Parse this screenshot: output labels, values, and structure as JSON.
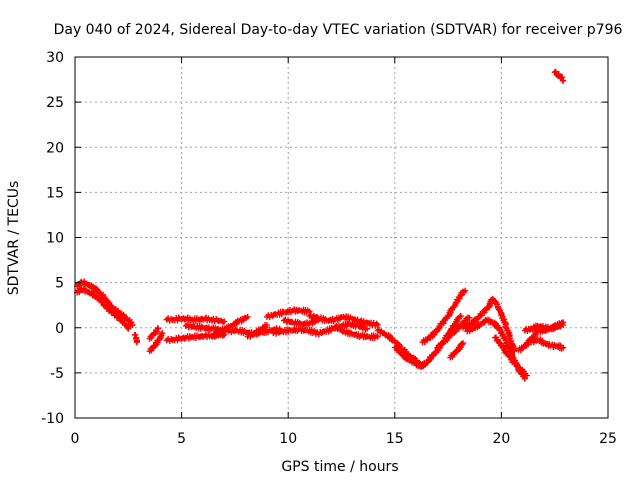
{
  "chart_data": {
    "type": "scatter",
    "title": "Day 040 of 2024, Sidereal Day-to-day VTEC variation (SDTVAR) for receiver p796",
    "xlabel": "GPS time / hours",
    "ylabel": "SDTVAR / TECUs",
    "xlim": [
      0,
      25
    ],
    "ylim": [
      -10,
      30
    ],
    "xticks": [
      0,
      5,
      10,
      15,
      20,
      25
    ],
    "yticks": [
      -10,
      -5,
      0,
      5,
      10,
      15,
      20,
      25,
      30
    ],
    "xtick_labels": [
      "0",
      "5",
      "10",
      "15",
      "20",
      "25"
    ],
    "ytick_labels": [
      "-10",
      "-5",
      "0",
      "5",
      "10",
      "15",
      "20",
      "25",
      "30"
    ],
    "grid": true,
    "marker": "+",
    "color": "#ff0000",
    "series": [
      {
        "name": "SDTVAR",
        "segments": [
          {
            "x": [
              0.1,
              0.3,
              0.5,
              0.7,
              0.9,
              1.1,
              1.3,
              1.5,
              1.7,
              1.9,
              2.1,
              2.3,
              2.5,
              2.7
            ],
            "y": [
              4.6,
              5.1,
              4.9,
              4.6,
              4.4,
              4.0,
              3.6,
              3.0,
              2.4,
              2.0,
              1.6,
              1.2,
              0.8,
              0.3
            ]
          },
          {
            "x": [
              0.1,
              0.3,
              0.5,
              0.7,
              0.9,
              1.1,
              1.3,
              1.5,
              1.7,
              1.9,
              2.1,
              2.3,
              2.5
            ],
            "y": [
              3.9,
              4.3,
              4.1,
              3.8,
              3.6,
              3.3,
              2.8,
              2.3,
              1.8,
              1.4,
              1.0,
              0.5,
              -0.1
            ]
          },
          {
            "x": [
              2.8,
              2.9
            ],
            "y": [
              -0.8,
              -1.6
            ]
          },
          {
            "x": [
              3.5,
              3.7,
              3.9,
              4.1
            ],
            "y": [
              -2.6,
              -2.0,
              -1.4,
              -0.6
            ]
          },
          {
            "x": [
              3.5,
              3.7,
              3.9
            ],
            "y": [
              -1.2,
              -0.6,
              -0.1
            ]
          },
          {
            "x": [
              4.3,
              4.6,
              4.9,
              5.2,
              5.5,
              5.8,
              6.1,
              6.4,
              6.7,
              7.0
            ],
            "y": [
              0.9,
              0.9,
              1.0,
              1.0,
              0.9,
              0.9,
              1.0,
              0.9,
              0.8,
              0.7
            ]
          },
          {
            "x": [
              4.3,
              4.6,
              4.9,
              5.2,
              5.5,
              5.8,
              6.1,
              6.4,
              6.7,
              7.0
            ],
            "y": [
              -1.4,
              -1.3,
              -1.2,
              -1.1,
              -1.0,
              -1.0,
              -0.9,
              -0.9,
              -0.8,
              -0.8
            ]
          },
          {
            "x": [
              5.2,
              5.6,
              6.0,
              6.4,
              6.8,
              7.2
            ],
            "y": [
              0.2,
              0.1,
              0.0,
              -0.1,
              -0.2,
              -0.3
            ]
          },
          {
            "x": [
              6.5,
              6.9,
              7.3,
              7.7,
              8.1
            ],
            "y": [
              -0.9,
              -0.4,
              0.2,
              0.7,
              1.2
            ]
          },
          {
            "x": [
              7.2,
              7.6,
              8.0,
              8.4,
              8.8,
              9.2,
              9.6
            ],
            "y": [
              -0.4,
              -0.3,
              -0.5,
              -0.7,
              -0.5,
              -0.3,
              -0.1
            ]
          },
          {
            "x": [
              8.1,
              8.4,
              8.7,
              9.0
            ],
            "y": [
              -1.0,
              -0.6,
              -0.2,
              0.3
            ]
          },
          {
            "x": [
              9.0,
              9.4,
              9.8,
              10.2,
              10.6,
              11.0
            ],
            "y": [
              1.2,
              1.5,
              1.7,
              1.9,
              1.9,
              1.8
            ]
          },
          {
            "x": [
              9.3,
              9.7,
              10.1,
              10.5,
              10.9,
              11.3
            ],
            "y": [
              -0.6,
              -0.4,
              -0.3,
              -0.2,
              -0.3,
              -0.5
            ]
          },
          {
            "x": [
              9.8,
              10.2,
              10.6,
              11.0,
              11.4
            ],
            "y": [
              0.8,
              0.6,
              0.4,
              0.5,
              0.8
            ]
          },
          {
            "x": [
              11.0,
              11.4,
              11.8,
              12.2,
              12.6,
              13.0,
              13.4,
              13.8,
              14.2
            ],
            "y": [
              1.3,
              1.1,
              0.8,
              0.9,
              1.2,
              1.0,
              0.7,
              0.5,
              0.3
            ]
          },
          {
            "x": [
              11.3,
              11.7,
              12.1,
              12.5,
              12.9,
              13.3,
              13.7
            ],
            "y": [
              -0.7,
              -0.4,
              -0.1,
              0.2,
              0.4,
              0.2,
              -0.1
            ]
          },
          {
            "x": [
              12.2,
              12.6,
              13.0,
              13.4,
              13.8,
              14.2
            ],
            "y": [
              0.1,
              -0.4,
              -0.7,
              -0.9,
              -1.0,
              -1.0
            ]
          },
          {
            "x": [
              14.2,
              14.6,
              15.0,
              15.4,
              15.8,
              16.2
            ],
            "y": [
              -0.3,
              -0.8,
              -1.5,
              -2.5,
              -3.3,
              -4.0
            ]
          },
          {
            "x": [
              15.0,
              15.3,
              15.6,
              15.9,
              16.2,
              16.5,
              16.8
            ],
            "y": [
              -2.2,
              -2.9,
              -3.5,
              -3.9,
              -4.3,
              -3.9,
              -3.1
            ]
          },
          {
            "x": [
              16.3,
              16.6,
              16.9,
              17.2,
              17.5,
              17.8,
              18.1,
              18.3
            ],
            "y": [
              -1.6,
              -1.1,
              -0.5,
              0.4,
              1.3,
              2.4,
              3.6,
              4.1
            ]
          },
          {
            "x": [
              16.6,
              16.9,
              17.2,
              17.5,
              17.8,
              18.1
            ],
            "y": [
              -3.5,
              -2.7,
              -1.8,
              -0.8,
              0.3,
              1.3
            ]
          },
          {
            "x": [
              17.0,
              17.3,
              17.6,
              17.9,
              18.2,
              18.5
            ],
            "y": [
              -2.2,
              -1.5,
              -0.8,
              -0.2,
              0.5,
              1.1
            ]
          },
          {
            "x": [
              17.6,
              17.9,
              18.2
            ],
            "y": [
              -3.3,
              -2.5,
              -1.7
            ]
          },
          {
            "x": [
              18.2,
              18.5,
              18.8,
              19.1,
              19.4,
              19.6,
              19.8,
              20.0,
              20.2,
              20.4,
              20.6
            ],
            "y": [
              0.0,
              0.3,
              0.9,
              1.6,
              2.3,
              3.2,
              2.6,
              1.6,
              0.3,
              -1.2,
              -2.6
            ]
          },
          {
            "x": [
              18.4,
              18.7,
              19.0,
              19.3,
              19.6,
              19.9,
              20.2,
              20.5,
              20.8,
              21.1
            ],
            "y": [
              -0.4,
              0.0,
              0.4,
              0.8,
              0.6,
              0.0,
              -1.4,
              -3.0,
              -4.6,
              -5.6
            ]
          },
          {
            "x": [
              19.7,
              20.0,
              20.3,
              20.6,
              20.9,
              21.2
            ],
            "y": [
              -1.1,
              -2.0,
              -3.0,
              -3.9,
              -4.6,
              -5.3
            ]
          },
          {
            "x": [
              20.8,
              21.1,
              21.4,
              21.7,
              22.0,
              22.3,
              22.6,
              22.9
            ],
            "y": [
              -2.5,
              -2.0,
              -1.2,
              -0.4,
              -0.3,
              0.0,
              0.2,
              0.6
            ]
          },
          {
            "x": [
              21.1,
              21.4,
              21.7,
              22.0,
              22.3,
              22.6,
              22.9
            ],
            "y": [
              -0.3,
              -0.1,
              0.2,
              0.0,
              -0.1,
              0.1,
              0.3
            ]
          },
          {
            "x": [
              21.4,
              21.7,
              22.0,
              22.3,
              22.6,
              22.9
            ],
            "y": [
              -1.6,
              -1.3,
              -1.7,
              -2.0,
              -2.0,
              -2.2
            ]
          },
          {
            "x": [
              22.5,
              22.6,
              22.7,
              22.8,
              22.9
            ],
            "y": [
              28.3,
              28.1,
              27.9,
              27.7,
              27.4
            ]
          }
        ]
      }
    ]
  }
}
